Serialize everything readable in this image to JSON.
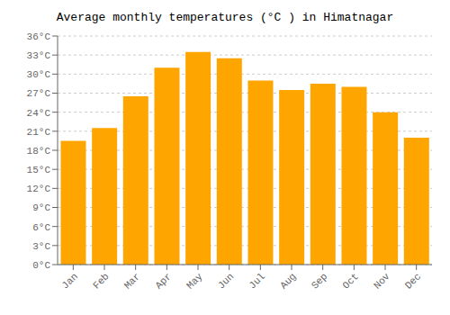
{
  "chart_data": {
    "type": "bar",
    "title": "Average monthly temperatures (°C ) in Himatnagar",
    "categories": [
      "Jan",
      "Feb",
      "Mar",
      "Apr",
      "May",
      "Jun",
      "Jul",
      "Aug",
      "Sep",
      "Oct",
      "Nov",
      "Dec"
    ],
    "values": [
      19.5,
      21.5,
      26.5,
      31.0,
      33.5,
      32.5,
      29.0,
      27.5,
      28.5,
      28.0,
      24.0,
      20.0
    ],
    "color": "#FFA500",
    "ylim": [
      0,
      36
    ],
    "yticks": [
      {
        "value": 0,
        "label": "0°C"
      },
      {
        "value": 3,
        "label": "3°C"
      },
      {
        "value": 6,
        "label": "6°C"
      },
      {
        "value": 9,
        "label": "9°C"
      },
      {
        "value": 12,
        "label": "12°C"
      },
      {
        "value": 15,
        "label": "15°C"
      },
      {
        "value": 18,
        "label": "18°C"
      },
      {
        "value": 21,
        "label": "21°C"
      },
      {
        "value": 24,
        "label": "24°C"
      },
      {
        "value": 27,
        "label": "27°C"
      },
      {
        "value": 30,
        "label": "30°C"
      },
      {
        "value": 33,
        "label": "33°C"
      },
      {
        "value": 36,
        "label": "36°C"
      }
    ],
    "grid": true
  }
}
